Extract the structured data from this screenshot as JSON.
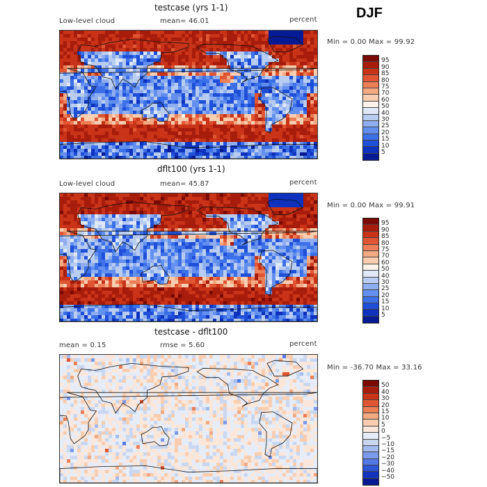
{
  "season": "DJF",
  "colors": {
    "warm": [
      "#f9e7d9",
      "#f8cdb0",
      "#f3aa82",
      "#ec7f57",
      "#e05533",
      "#c93418",
      "#a81c0c",
      "#7a0a03"
    ],
    "cool": [
      "#dfe8f7",
      "#b9cdf0",
      "#8eaef0",
      "#6390ee",
      "#3c70e8",
      "#1f4fd8",
      "#0e32bd",
      "#061b93"
    ]
  },
  "panels": [
    {
      "title": "testcase (yrs 1-1)",
      "left_text": "Low-level cloud",
      "mid_text": "mean=  46.01",
      "right_text": "percent",
      "stats": "Min =   0.00 Max =  99.92",
      "colorbar": {
        "levels": [
          "95",
          "90",
          "85",
          "80",
          "75",
          "70",
          "60",
          "50",
          "40",
          "30",
          "25",
          "20",
          "15",
          "10",
          "5"
        ],
        "colors": [
          "#7a0a03",
          "#a81c0c",
          "#c93418",
          "#e05533",
          "#ec7f57",
          "#f3aa82",
          "#f8cdb0",
          "#fdf3ea",
          "#dfe8f7",
          "#b9cdf0",
          "#8eaef0",
          "#6390ee",
          "#3c70e8",
          "#1f4fd8",
          "#0e32bd",
          "#061b93"
        ]
      }
    },
    {
      "title": "dflt100 (yrs 1-1)",
      "left_text": "Low-level cloud",
      "mid_text": "mean=  45.87",
      "right_text": "percent",
      "stats": "Min =   0.00 Max =  99.91",
      "colorbar": {
        "levels": [
          "95",
          "90",
          "85",
          "80",
          "75",
          "70",
          "60",
          "50",
          "40",
          "30",
          "25",
          "20",
          "15",
          "10",
          "5"
        ],
        "colors": [
          "#7a0a03",
          "#a81c0c",
          "#c93418",
          "#e05533",
          "#ec7f57",
          "#f3aa82",
          "#f8cdb0",
          "#fdf3ea",
          "#dfe8f7",
          "#b9cdf0",
          "#8eaef0",
          "#6390ee",
          "#3c70e8",
          "#1f4fd8",
          "#0e32bd",
          "#061b93"
        ]
      }
    },
    {
      "title": "testcase - dflt100",
      "left_text": "mean =   0.15",
      "mid_text": "rmse =   5.60",
      "right_text": "percent",
      "stats": "Min = -36.70 Max =  33.16",
      "colorbar": {
        "levels": [
          "50",
          "40",
          "30",
          "20",
          "15",
          "10",
          "5",
          "0",
          "−5",
          "−10",
          "−15",
          "−20",
          "−30",
          "−40",
          "−50"
        ],
        "colors": [
          "#7a0a03",
          "#a81c0c",
          "#c93418",
          "#e05533",
          "#ec7f57",
          "#f3aa82",
          "#f8cdb0",
          "#fbe6da",
          "#e6edf8",
          "#c9d7f1",
          "#a4bbef",
          "#7d9bec",
          "#5479e6",
          "#2c55d8",
          "#1234bd",
          "#061b93"
        ]
      }
    }
  ]
}
